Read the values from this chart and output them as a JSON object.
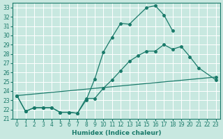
{
  "xlabel": "Humidex (Indice chaleur)",
  "bg_color": "#c8e8e0",
  "grid_color": "#ffffff",
  "line_color": "#1a7a6a",
  "xlim": [
    -0.5,
    23.5
  ],
  "ylim": [
    21,
    33.5
  ],
  "xticks": [
    0,
    1,
    2,
    3,
    4,
    5,
    6,
    7,
    8,
    9,
    10,
    11,
    12,
    13,
    14,
    15,
    16,
    17,
    18,
    19,
    20,
    21,
    22,
    23
  ],
  "yticks": [
    21,
    22,
    23,
    24,
    25,
    26,
    27,
    28,
    29,
    30,
    31,
    32,
    33
  ],
  "line1_x": [
    0,
    1,
    2,
    3,
    4,
    5,
    6,
    7,
    8,
    9,
    10,
    11,
    12,
    13,
    15,
    16,
    17,
    18
  ],
  "line1_y": [
    23.5,
    21.8,
    22.2,
    22.2,
    22.2,
    21.7,
    21.7,
    21.6,
    23.0,
    25.3,
    28.2,
    29.8,
    31.3,
    31.2,
    33.0,
    33.2,
    32.2,
    30.5
  ],
  "line2_x": [
    0,
    1,
    2,
    3,
    4,
    5,
    6,
    7,
    8,
    9,
    10,
    11,
    12,
    13,
    14,
    15,
    16,
    17,
    18,
    19,
    20,
    21,
    23
  ],
  "line2_y": [
    23.5,
    21.8,
    22.2,
    22.2,
    22.2,
    21.7,
    21.7,
    21.6,
    23.2,
    23.2,
    24.3,
    25.2,
    26.2,
    27.2,
    27.8,
    28.3,
    28.3,
    29.0,
    28.5,
    28.8,
    27.7,
    26.5,
    25.2
  ],
  "line3_x": [
    0,
    23
  ],
  "line3_y": [
    23.5,
    25.5
  ],
  "marker_size": 2.5,
  "lw": 0.9
}
